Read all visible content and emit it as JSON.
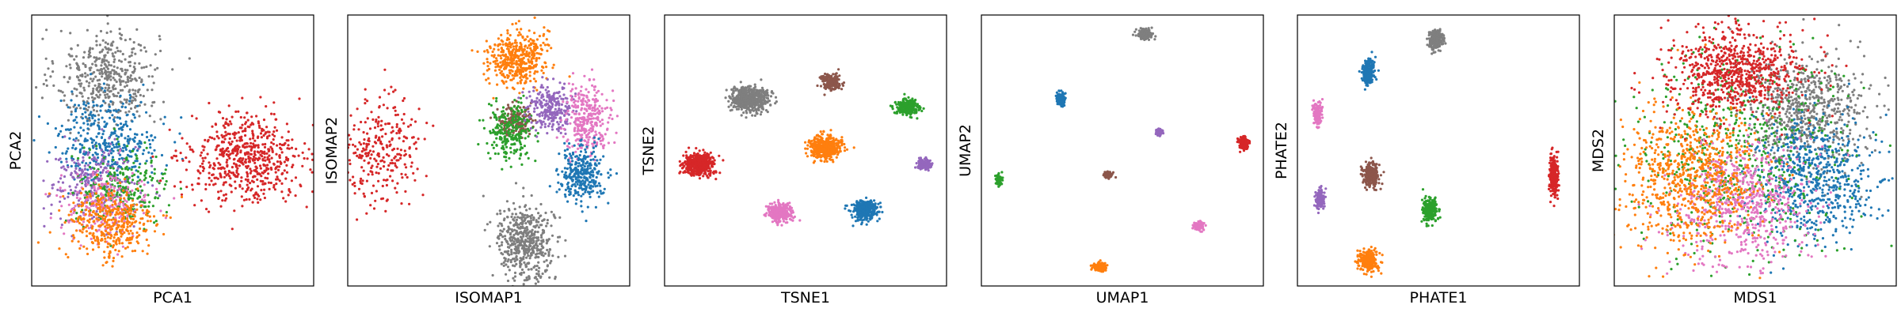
{
  "chart_data": [
    {
      "type": "scatter",
      "xlabel": "PCA1",
      "ylabel": "PCA2",
      "xlim": [
        0,
        100
      ],
      "ylim": [
        0,
        100
      ],
      "series": [
        {
          "color": "#7f7f7f",
          "clusters": [
            {
              "x": 27,
              "y": 77,
              "sx": 9,
              "sy": 9,
              "n": 450
            }
          ]
        },
        {
          "color": "#1f77b4",
          "clusters": [
            {
              "x": 27,
              "y": 54,
              "sx": 9,
              "sy": 8,
              "n": 380
            }
          ]
        },
        {
          "color": "#9467bd",
          "clusters": [
            {
              "x": 22,
              "y": 38,
              "sx": 8,
              "sy": 7,
              "n": 260
            }
          ]
        },
        {
          "color": "#2ca02c",
          "clusters": [
            {
              "x": 32,
              "y": 36,
              "sx": 8,
              "sy": 7,
              "n": 260
            }
          ]
        },
        {
          "color": "#e377c2",
          "clusters": [
            {
              "x": 26,
              "y": 30,
              "sx": 8,
              "sy": 6,
              "n": 220
            }
          ]
        },
        {
          "color": "#ff7f0e",
          "clusters": [
            {
              "x": 28,
              "y": 23,
              "sx": 8,
              "sy": 7,
              "n": 380
            }
          ]
        },
        {
          "color": "#d62728",
          "clusters": [
            {
              "x": 76,
              "y": 47,
              "sx": 10,
              "sy": 8,
              "n": 600
            }
          ]
        }
      ]
    },
    {
      "type": "scatter",
      "xlabel": "ISOMAP1",
      "ylabel": "ISOMAP2",
      "xlim": [
        0,
        100
      ],
      "ylim": [
        0,
        100
      ],
      "series": [
        {
          "color": "#ff7f0e",
          "clusters": [
            {
              "x": 60,
              "y": 84,
              "sx": 5,
              "sy": 5,
              "n": 450
            }
          ]
        },
        {
          "color": "#8c564b",
          "clusters": [
            {
              "x": 59,
              "y": 61,
              "sx": 3,
              "sy": 3,
              "n": 170
            }
          ]
        },
        {
          "color": "#2ca02c",
          "clusters": [
            {
              "x": 58,
              "y": 57,
              "sx": 4,
              "sy": 5,
              "n": 240
            }
          ]
        },
        {
          "color": "#9467bd",
          "clusters": [
            {
              "x": 72,
              "y": 66,
              "sx": 4,
              "sy": 4,
              "n": 260
            }
          ]
        },
        {
          "color": "#e377c2",
          "clusters": [
            {
              "x": 85,
              "y": 62,
              "sx": 4,
              "sy": 6,
              "n": 300
            }
          ]
        },
        {
          "color": "#1f77b4",
          "clusters": [
            {
              "x": 83,
              "y": 41,
              "sx": 4,
              "sy": 5,
              "n": 320
            }
          ]
        },
        {
          "color": "#7f7f7f",
          "clusters": [
            {
              "x": 63,
              "y": 16,
              "sx": 5,
              "sy": 7,
              "n": 500
            }
          ]
        },
        {
          "color": "#d62728",
          "clusters": [
            {
              "x": 12,
              "y": 50,
              "sx": 7,
              "sy": 10,
              "n": 280
            }
          ]
        }
      ]
    },
    {
      "type": "scatter",
      "xlabel": "TSNE1",
      "ylabel": "TSNE2",
      "xlim": [
        0,
        100
      ],
      "ylim": [
        0,
        100
      ],
      "series": [
        {
          "color": "#7f7f7f",
          "clusters": [
            {
              "x": 30,
              "y": 69,
              "sx": 3.3,
              "sy": 2.3,
              "n": 550
            }
          ]
        },
        {
          "color": "#8c564b",
          "clusters": [
            {
              "x": 59,
              "y": 75,
              "sx": 1.8,
              "sy": 1.4,
              "n": 200
            }
          ]
        },
        {
          "color": "#2ca02c",
          "clusters": [
            {
              "x": 86,
              "y": 66,
              "sx": 2.0,
              "sy": 1.5,
              "n": 260
            }
          ]
        },
        {
          "color": "#ff7f0e",
          "clusters": [
            {
              "x": 57,
              "y": 51,
              "sx": 2.8,
              "sy": 2.0,
              "n": 450
            }
          ]
        },
        {
          "color": "#d62728",
          "clusters": [
            {
              "x": 12,
              "y": 45,
              "sx": 2.8,
              "sy": 2.0,
              "n": 450
            }
          ]
        },
        {
          "color": "#9467bd",
          "clusters": [
            {
              "x": 92,
              "y": 45,
              "sx": 1.3,
              "sy": 1.0,
              "n": 120
            }
          ]
        },
        {
          "color": "#e377c2",
          "clusters": [
            {
              "x": 41,
              "y": 27,
              "sx": 2.1,
              "sy": 1.6,
              "n": 300
            }
          ]
        },
        {
          "color": "#1f77b4",
          "clusters": [
            {
              "x": 71,
              "y": 28,
              "sx": 2.3,
              "sy": 1.8,
              "n": 350
            }
          ]
        }
      ]
    },
    {
      "type": "scatter",
      "xlabel": "UMAP1",
      "ylabel": "UMAP2",
      "xlim": [
        0,
        100
      ],
      "ylim": [
        0,
        100
      ],
      "series": [
        {
          "color": "#7f7f7f",
          "clusters": [
            {
              "x": 58,
              "y": 93,
              "sx": 1.2,
              "sy": 0.9,
              "n": 200
            }
          ]
        },
        {
          "color": "#1f77b4",
          "clusters": [
            {
              "x": 28,
              "y": 69,
              "sx": 0.8,
              "sy": 1.1,
              "n": 150
            }
          ]
        },
        {
          "color": "#9467bd",
          "clusters": [
            {
              "x": 63,
              "y": 57,
              "sx": 0.6,
              "sy": 0.6,
              "n": 80
            }
          ]
        },
        {
          "color": "#d62728",
          "clusters": [
            {
              "x": 93,
              "y": 53,
              "sx": 0.9,
              "sy": 1.2,
              "n": 150
            }
          ]
        },
        {
          "color": "#2ca02c",
          "clusters": [
            {
              "x": 6,
              "y": 39,
              "sx": 0.6,
              "sy": 1.0,
              "n": 100
            }
          ]
        },
        {
          "color": "#8c564b",
          "clusters": [
            {
              "x": 45,
              "y": 41,
              "sx": 0.7,
              "sy": 0.6,
              "n": 80
            }
          ]
        },
        {
          "color": "#e377c2",
          "clusters": [
            {
              "x": 77,
              "y": 22,
              "sx": 0.9,
              "sy": 0.7,
              "n": 120
            }
          ]
        },
        {
          "color": "#ff7f0e",
          "clusters": [
            {
              "x": 42,
              "y": 7,
              "sx": 1.1,
              "sy": 0.8,
              "n": 150
            }
          ]
        }
      ]
    },
    {
      "type": "scatter",
      "xlabel": "PHATE1",
      "ylabel": "PHATE2",
      "xlim": [
        0,
        100
      ],
      "ylim": [
        0,
        100
      ],
      "series": [
        {
          "color": "#7f7f7f",
          "clusters": [
            {
              "x": 49,
              "y": 91,
              "sx": 1.2,
              "sy": 1.8,
              "n": 260
            }
          ]
        },
        {
          "color": "#1f77b4",
          "clusters": [
            {
              "x": 25,
              "y": 79,
              "sx": 1.0,
              "sy": 2.4,
              "n": 260
            }
          ]
        },
        {
          "color": "#e377c2",
          "clusters": [
            {
              "x": 7,
              "y": 64,
              "sx": 0.8,
              "sy": 2.0,
              "n": 150
            }
          ]
        },
        {
          "color": "#8c564b",
          "clusters": [
            {
              "x": 26,
              "y": 41,
              "sx": 1.4,
              "sy": 2.2,
              "n": 260
            }
          ]
        },
        {
          "color": "#9467bd",
          "clusters": [
            {
              "x": 8,
              "y": 32,
              "sx": 0.8,
              "sy": 1.8,
              "n": 130
            }
          ]
        },
        {
          "color": "#2ca02c",
          "clusters": [
            {
              "x": 47,
              "y": 28,
              "sx": 1.2,
              "sy": 2.2,
              "n": 260
            }
          ]
        },
        {
          "color": "#d62728",
          "clusters": [
            {
              "x": 91,
              "y": 41,
              "sx": 0.8,
              "sy": 3.6,
              "n": 260
            }
          ]
        },
        {
          "color": "#ff7f0e",
          "clusters": [
            {
              "x": 25,
              "y": 9,
              "sx": 1.8,
              "sy": 2.0,
              "n": 260
            }
          ]
        }
      ]
    },
    {
      "type": "scatter",
      "xlabel": "MDS1",
      "ylabel": "MDS2",
      "xlim": [
        0,
        100
      ],
      "ylim": [
        0,
        100
      ],
      "series": [
        {
          "color": "#7f7f7f",
          "clusters": [
            {
              "x": 68,
              "y": 65,
              "sx": 11,
              "sy": 10,
              "n": 650
            }
          ]
        },
        {
          "color": "#1f77b4",
          "clusters": [
            {
              "x": 71,
              "y": 40,
              "sx": 11,
              "sy": 11,
              "n": 650
            }
          ]
        },
        {
          "color": "#2ca02c",
          "clusters": [
            {
              "x": 44,
              "y": 50,
              "sx": 18,
              "sy": 18,
              "n": 600
            }
          ]
        },
        {
          "color": "#e377c2",
          "clusters": [
            {
              "x": 45,
              "y": 30,
              "sx": 12,
              "sy": 11,
              "n": 650
            }
          ]
        },
        {
          "color": "#ff7f0e",
          "clusters": [
            {
              "x": 26,
              "y": 40,
              "sx": 12,
              "sy": 13,
              "n": 750
            }
          ]
        },
        {
          "color": "#d62728",
          "clusters": [
            {
              "x": 42,
              "y": 79,
              "sx": 12,
              "sy": 8,
              "n": 750
            }
          ]
        }
      ]
    }
  ]
}
